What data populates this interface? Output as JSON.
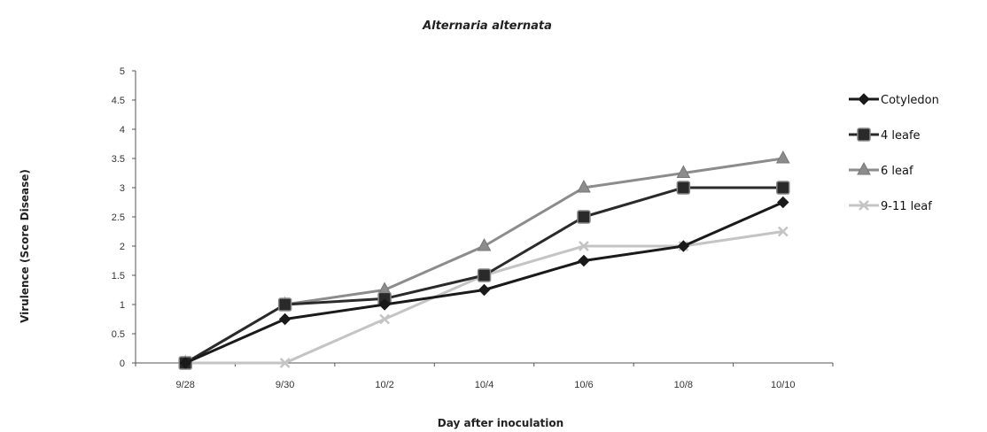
{
  "chart_data": {
    "type": "line",
    "title": "Alternaria alternata",
    "xlabel": "Day after inoculation",
    "ylabel": "Virulence (Score Disease)",
    "categories": [
      "9/28",
      "9/30",
      "10/2",
      "10/4",
      "10/6",
      "10/8",
      "10/10"
    ],
    "ylim": [
      0,
      5
    ],
    "yticks": [
      "0",
      "0.5",
      "1",
      "1.5",
      "2",
      "2.5",
      "3",
      "3.5",
      "4",
      "4.5",
      "5"
    ],
    "grid": false,
    "legend_position": "right",
    "series": [
      {
        "name": "Cotyledon",
        "color": "#1a1a1a",
        "marker": "diamond",
        "values": [
          0,
          0.75,
          1.0,
          1.25,
          1.75,
          2.0,
          2.75
        ]
      },
      {
        "name": "4 leafe",
        "color": "#2a2a2a",
        "marker": "square",
        "values": [
          0,
          1.0,
          1.1,
          1.5,
          2.5,
          3.0,
          3.0
        ]
      },
      {
        "name": "6 leaf",
        "color": "#8c8c8c",
        "marker": "triangle",
        "values": [
          0,
          1.0,
          1.25,
          2.0,
          3.0,
          3.25,
          3.5
        ]
      },
      {
        "name": "9-11 leaf",
        "color": "#c4c4c4",
        "marker": "x",
        "values": [
          0,
          0,
          0.75,
          1.5,
          2.0,
          2.0,
          2.25
        ]
      }
    ]
  }
}
